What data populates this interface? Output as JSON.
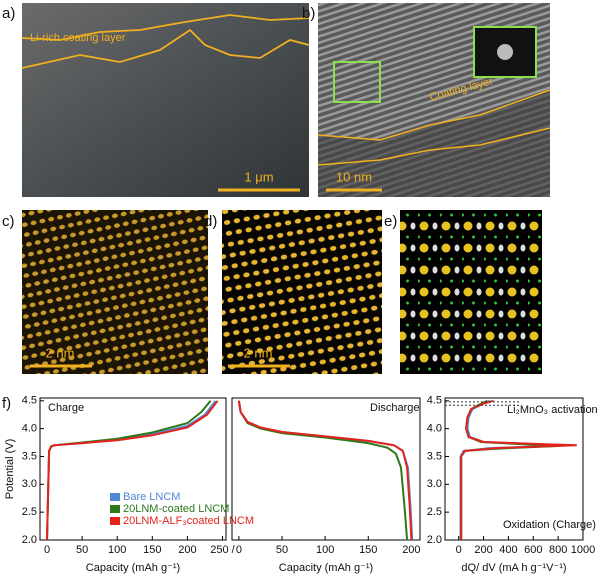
{
  "figure": {
    "panels": [
      {
        "label": "a)",
        "annotation": "Li-rich coating layer",
        "scale_bar": "1 μm"
      },
      {
        "label": "b)",
        "annotation": "Coating layer",
        "scale_bar": "10 nm"
      },
      {
        "label": "c)",
        "scale_bar": "2 nm"
      },
      {
        "label": "d)",
        "scale_bar": "2 nm"
      },
      {
        "label": "e)"
      },
      {
        "label": "f)"
      }
    ]
  },
  "chart_data": [
    {
      "type": "line",
      "title": "Charge",
      "xlabel": "Capacity (mAh g⁻¹)",
      "ylabel": "Potential (V)",
      "xlim": [
        -10,
        255
      ],
      "ylim": [
        2.0,
        4.55
      ],
      "xticks": [
        0,
        50,
        100,
        150,
        200,
        {
          "value": 250,
          "label": "250 /"
        }
      ],
      "yticks": [
        {
          "value": 2,
          "label": "2.0"
        },
        2.5,
        {
          "value": 3,
          "label": "3.0"
        },
        3.5,
        {
          "value": 4,
          "label": "4.0"
        },
        4.5
      ],
      "series": [
        {
          "name": "Bare LNCM",
          "color": "#4f86d6",
          "x": [
            0,
            3,
            6,
            10,
            50,
            100,
            150,
            200,
            225,
            240
          ],
          "values": [
            2.0,
            3.6,
            3.68,
            3.7,
            3.74,
            3.8,
            3.9,
            4.05,
            4.25,
            4.5
          ]
        },
        {
          "name": "20LNM-coated LNCM",
          "color": "#2b7a1c",
          "x": [
            0,
            3,
            6,
            10,
            50,
            100,
            150,
            200,
            220,
            233
          ],
          "values": [
            2.0,
            3.6,
            3.68,
            3.7,
            3.75,
            3.82,
            3.93,
            4.1,
            4.3,
            4.5
          ]
        },
        {
          "name": "20LNM-ALF₃coated LNCM",
          "color": "#e5231b",
          "x": [
            0,
            3,
            6,
            10,
            50,
            100,
            150,
            200,
            228,
            243
          ],
          "values": [
            2.0,
            3.6,
            3.68,
            3.7,
            3.74,
            3.79,
            3.88,
            4.02,
            4.25,
            4.5
          ]
        }
      ]
    },
    {
      "type": "line",
      "title": "Discharge",
      "xlabel": "Capacity (mAh g⁻¹)",
      "xlim": [
        -8,
        210
      ],
      "ylim": [
        2.0,
        4.55
      ],
      "xticks": [
        0,
        50,
        100,
        150,
        200
      ],
      "series": [
        {
          "color": "#4f86d6",
          "x": [
            0,
            2,
            10,
            25,
            50,
            100,
            150,
            180,
            190,
            196,
            199,
            201
          ],
          "values": [
            4.5,
            4.3,
            4.12,
            4.02,
            3.94,
            3.86,
            3.78,
            3.7,
            3.6,
            3.3,
            2.6,
            2.0
          ]
        },
        {
          "color": "#2b7a1c",
          "x": [
            0,
            2,
            10,
            25,
            50,
            100,
            150,
            172,
            182,
            188,
            192,
            195
          ],
          "values": [
            4.5,
            4.3,
            4.1,
            4.0,
            3.92,
            3.84,
            3.74,
            3.66,
            3.55,
            3.3,
            2.6,
            2.0
          ]
        },
        {
          "color": "#e5231b",
          "x": [
            0,
            2,
            10,
            25,
            50,
            100,
            150,
            180,
            190,
            195,
            198,
            200
          ],
          "values": [
            4.5,
            4.3,
            4.12,
            4.02,
            3.94,
            3.86,
            3.78,
            3.7,
            3.6,
            3.3,
            2.6,
            2.0
          ]
        }
      ]
    },
    {
      "type": "line",
      "xlabel": "dQ/ dV (mA h g⁻¹V⁻¹)",
      "annotations": [
        "Li₂MnO₃ activation",
        "Oxidation (Charge)"
      ],
      "xlim": [
        -110,
        1000
      ],
      "ylim": [
        2.0,
        4.55
      ],
      "xticks": [
        0,
        200,
        400,
        600,
        800,
        1000
      ],
      "yticks": [
        {
          "value": 2,
          "label": "2.0"
        },
        2.5,
        {
          "value": 3,
          "label": "3.0"
        },
        3.5,
        {
          "value": 4,
          "label": "4.0"
        },
        4.5
      ],
      "series": [
        {
          "color": "#4f86d6",
          "x": [
            15,
            15,
            40,
            250,
            900,
            650,
            200,
            90,
            70,
            80,
            110,
            200,
            250
          ],
          "values": [
            2.0,
            3.5,
            3.6,
            3.65,
            3.7,
            3.72,
            3.76,
            3.85,
            4.0,
            4.2,
            4.35,
            4.45,
            4.5
          ]
        },
        {
          "color": "#2b7a1c",
          "x": [
            20,
            20,
            50,
            300,
            820,
            600,
            180,
            80,
            60,
            70,
            100,
            180,
            230
          ],
          "values": [
            2.0,
            3.5,
            3.6,
            3.64,
            3.69,
            3.71,
            3.76,
            3.85,
            4.0,
            4.2,
            4.35,
            4.45,
            4.5
          ]
        },
        {
          "color": "#e5231b",
          "x": [
            20,
            20,
            50,
            300,
            950,
            700,
            200,
            80,
            60,
            70,
            100,
            200,
            280
          ],
          "values": [
            2.0,
            3.5,
            3.6,
            3.65,
            3.7,
            3.72,
            3.76,
            3.85,
            4.0,
            4.2,
            4.35,
            4.45,
            4.5
          ]
        }
      ]
    }
  ]
}
